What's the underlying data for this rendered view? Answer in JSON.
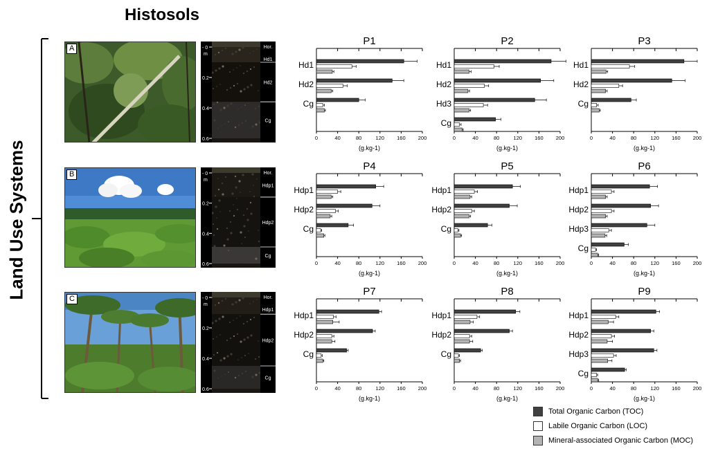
{
  "title": "Histosols",
  "side_label": "Land Use Systems",
  "photos": [
    {
      "tag": "A",
      "scene": "forest"
    },
    {
      "tag": "B",
      "scene": "cassava-field"
    },
    {
      "tag": "C",
      "scene": "palm-plantation"
    }
  ],
  "profiles": [
    {
      "depth_unit": "m",
      "depth_ticks": [
        "0",
        "0.2",
        "0.4",
        "0.6"
      ],
      "header": "Hor.",
      "horizons": [
        "Hd1",
        "Hd2",
        "Cg"
      ],
      "horizon_bounds": [
        0,
        0.1,
        0.36,
        0.6
      ]
    },
    {
      "depth_unit": "m",
      "depth_ticks": [
        "0",
        "0.2",
        "0.4",
        "0.6"
      ],
      "header": "Hor.",
      "horizons": [
        "Hdp1",
        "Hdp2",
        "Cg"
      ],
      "horizon_bounds": [
        0,
        0.16,
        0.49,
        0.6
      ]
    },
    {
      "depth_unit": "m",
      "depth_ticks": [
        "0",
        "0.2",
        "0.4",
        "0.6"
      ],
      "header": "Hor.",
      "horizons": [
        "Hdp1",
        "Hdp2",
        "Cg"
      ],
      "horizon_bounds": [
        0,
        0.11,
        0.45,
        0.6
      ]
    }
  ],
  "colors": {
    "TOC": "#404040",
    "LOC": "#ffffff",
    "MOC": "#b4b4b4"
  },
  "legend": [
    {
      "key": "TOC",
      "label": "Total Organic Carbon (TOC)"
    },
    {
      "key": "LOC",
      "label": "Labile Organic Carbon (LOC)"
    },
    {
      "key": "MOC",
      "label": "Mineral-associated Organic Carbon (MOC)"
    }
  ],
  "chart_data": [
    {
      "type": "bar",
      "title": "P1",
      "xlabel": "(g.kg-1)",
      "xlim": [
        0,
        200
      ],
      "xticks": [
        0,
        40,
        80,
        120,
        160,
        200
      ],
      "categories": [
        "Hd1",
        "Hd2",
        "Cg"
      ],
      "series": [
        {
          "key": "TOC",
          "values": [
            165,
            143,
            80
          ],
          "errors": [
            25,
            22,
            12
          ]
        },
        {
          "key": "LOC",
          "values": [
            67,
            50,
            12
          ],
          "errors": [
            8,
            8,
            3
          ]
        },
        {
          "key": "MOC",
          "values": [
            30,
            28,
            15
          ],
          "errors": [
            3,
            3,
            2
          ]
        }
      ]
    },
    {
      "type": "bar",
      "title": "P2",
      "xlabel": "(g.kg-1)",
      "xlim": [
        0,
        200
      ],
      "xticks": [
        0,
        40,
        80,
        120,
        160,
        200
      ],
      "categories": [
        "Hd1",
        "Hd2",
        "Hd3",
        "Cg"
      ],
      "series": [
        {
          "key": "TOC",
          "values": [
            183,
            163,
            152,
            78
          ],
          "errors": [
            28,
            25,
            22,
            10
          ]
        },
        {
          "key": "LOC",
          "values": [
            75,
            57,
            55,
            10
          ],
          "errors": [
            10,
            8,
            8,
            3
          ]
        },
        {
          "key": "MOC",
          "values": [
            28,
            26,
            28,
            15
          ],
          "errors": [
            4,
            3,
            3,
            2
          ]
        }
      ]
    },
    {
      "type": "bar",
      "title": "P3",
      "xlabel": "(g.kg-1)",
      "xlim": [
        0,
        200
      ],
      "xticks": [
        0,
        40,
        80,
        120,
        160,
        200
      ],
      "categories": [
        "Hd1",
        "Hd2",
        "Cg"
      ],
      "series": [
        {
          "key": "TOC",
          "values": [
            175,
            152,
            75
          ],
          "errors": [
            25,
            25,
            10
          ]
        },
        {
          "key": "LOC",
          "values": [
            72,
            52,
            10
          ],
          "errors": [
            10,
            7,
            3
          ]
        },
        {
          "key": "MOC",
          "values": [
            28,
            27,
            15
          ],
          "errors": [
            3,
            3,
            2
          ]
        }
      ]
    },
    {
      "type": "bar",
      "title": "P4",
      "xlabel": "(g.kg-1)",
      "xlim": [
        0,
        200
      ],
      "xticks": [
        0,
        40,
        80,
        120,
        160,
        200
      ],
      "categories": [
        "Hdp1",
        "Hdp2",
        "Cg"
      ],
      "series": [
        {
          "key": "TOC",
          "values": [
            112,
            105,
            60
          ],
          "errors": [
            15,
            15,
            10
          ]
        },
        {
          "key": "LOC",
          "values": [
            40,
            36,
            8
          ],
          "errors": [
            6,
            5,
            2
          ]
        },
        {
          "key": "MOC",
          "values": [
            28,
            26,
            14
          ],
          "errors": [
            3,
            3,
            2
          ]
        }
      ]
    },
    {
      "type": "bar",
      "title": "P5",
      "xlabel": "(g.kg-1)",
      "xlim": [
        0,
        200
      ],
      "xticks": [
        0,
        40,
        80,
        120,
        160,
        200
      ],
      "categories": [
        "Hdp1",
        "Hdp2",
        "Cg"
      ],
      "series": [
        {
          "key": "TOC",
          "values": [
            110,
            104,
            63
          ],
          "errors": [
            15,
            15,
            8
          ]
        },
        {
          "key": "LOC",
          "values": [
            38,
            33,
            7
          ],
          "errors": [
            6,
            5,
            2
          ]
        },
        {
          "key": "MOC",
          "values": [
            30,
            28,
            12
          ],
          "errors": [
            3,
            3,
            2
          ]
        }
      ]
    },
    {
      "type": "bar",
      "title": "P6",
      "xlabel": "(g.kg-1)",
      "xlim": [
        0,
        200
      ],
      "xticks": [
        0,
        40,
        80,
        120,
        160,
        200
      ],
      "categories": [
        "Hdp1",
        "Hdp2",
        "Hdp3",
        "Cg"
      ],
      "series": [
        {
          "key": "TOC",
          "values": [
            110,
            112,
            105,
            62
          ],
          "errors": [
            15,
            15,
            15,
            8
          ]
        },
        {
          "key": "LOC",
          "values": [
            38,
            38,
            33,
            8
          ],
          "errors": [
            5,
            5,
            5,
            2
          ]
        },
        {
          "key": "MOC",
          "values": [
            27,
            27,
            26,
            12
          ],
          "errors": [
            3,
            3,
            3,
            2
          ]
        }
      ]
    },
    {
      "type": "bar",
      "title": "P7",
      "xlabel": "(g.kg-1)",
      "xlim": [
        0,
        200
      ],
      "xticks": [
        0,
        40,
        80,
        120,
        160,
        200
      ],
      "categories": [
        "Hdp1",
        "Hdp2",
        "Cg"
      ],
      "series": [
        {
          "key": "TOC",
          "values": [
            118,
            106,
            57
          ],
          "errors": [
            5,
            5,
            3
          ]
        },
        {
          "key": "LOC",
          "values": [
            32,
            29,
            9
          ],
          "errors": [
            5,
            4,
            2
          ]
        },
        {
          "key": "MOC",
          "values": [
            31,
            29,
            12
          ],
          "errors": [
            12,
            6,
            2
          ]
        }
      ]
    },
    {
      "type": "bar",
      "title": "P8",
      "xlabel": "(g.kg-1)",
      "xlim": [
        0,
        200
      ],
      "xticks": [
        0,
        40,
        80,
        120,
        160,
        200
      ],
      "categories": [
        "Hdp1",
        "Hdp2",
        "Cg"
      ],
      "series": [
        {
          "key": "TOC",
          "values": [
            116,
            104,
            50
          ],
          "errors": [
            8,
            6,
            3
          ]
        },
        {
          "key": "LOC",
          "values": [
            43,
            29,
            8
          ],
          "errors": [
            5,
            4,
            2
          ]
        },
        {
          "key": "MOC",
          "values": [
            30,
            29,
            10
          ],
          "errors": [
            6,
            6,
            2
          ]
        }
      ]
    },
    {
      "type": "bar",
      "title": "P9",
      "xlabel": "(g.kg-1)",
      "xlim": [
        0,
        200
      ],
      "xticks": [
        0,
        40,
        80,
        120,
        160,
        200
      ],
      "categories": [
        "Hdp1",
        "Hdp2",
        "Hdp3",
        "Cg"
      ],
      "series": [
        {
          "key": "TOC",
          "values": [
            122,
            112,
            118,
            63
          ],
          "errors": [
            7,
            6,
            6,
            3
          ]
        },
        {
          "key": "LOC",
          "values": [
            46,
            38,
            42,
            10
          ],
          "errors": [
            6,
            6,
            5,
            2
          ]
        },
        {
          "key": "MOC",
          "values": [
            32,
            30,
            31,
            12
          ],
          "errors": [
            10,
            10,
            8,
            2
          ]
        }
      ]
    }
  ]
}
